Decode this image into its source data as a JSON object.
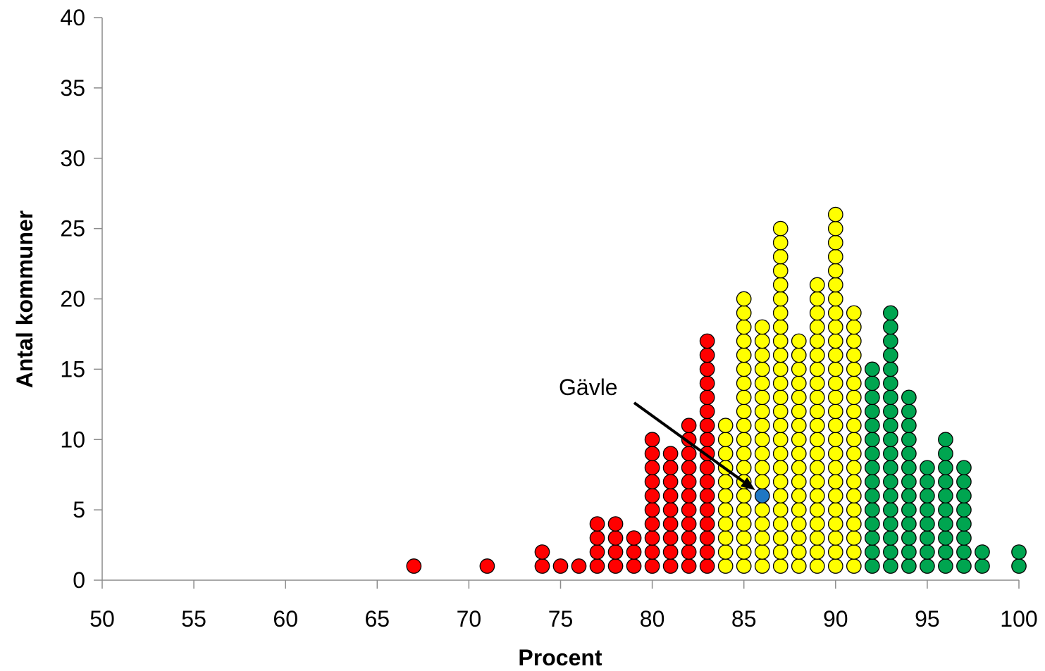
{
  "chart_data": {
    "type": "scatter",
    "subtype": "dot-histogram",
    "xlabel": "Procent",
    "ylabel": "Antal kommuner",
    "xlim": [
      50,
      100
    ],
    "ylim": [
      0,
      40
    ],
    "xticks": [
      "50",
      "55",
      "60",
      "65",
      "70",
      "75",
      "80",
      "85",
      "90",
      "95",
      "100"
    ],
    "yticks": [
      "0",
      "5",
      "10",
      "15",
      "20",
      "25",
      "30",
      "35",
      "40"
    ],
    "grid": false,
    "legend": "none",
    "colors": {
      "red": "#ff0000",
      "yellow": "#ffff00",
      "green": "#00a550",
      "highlight": "#1f77c4"
    },
    "columns": [
      {
        "x": 67,
        "count": 1,
        "color": "red"
      },
      {
        "x": 71,
        "count": 1,
        "color": "red"
      },
      {
        "x": 74,
        "count": 2,
        "color": "red"
      },
      {
        "x": 75,
        "count": 1,
        "color": "red"
      },
      {
        "x": 76,
        "count": 1,
        "color": "red"
      },
      {
        "x": 77,
        "count": 4,
        "color": "red"
      },
      {
        "x": 78,
        "count": 4,
        "color": "red"
      },
      {
        "x": 79,
        "count": 3,
        "color": "red"
      },
      {
        "x": 80,
        "count": 10,
        "color": "red"
      },
      {
        "x": 81,
        "count": 9,
        "color": "red"
      },
      {
        "x": 82,
        "count": 11,
        "color": "red"
      },
      {
        "x": 83,
        "count": 17,
        "color": "red"
      },
      {
        "x": 84,
        "count": 11,
        "color": "yellow"
      },
      {
        "x": 85,
        "count": 20,
        "color": "yellow"
      },
      {
        "x": 86,
        "count": 18,
        "color": "yellow"
      },
      {
        "x": 87,
        "count": 25,
        "color": "yellow"
      },
      {
        "x": 88,
        "count": 17,
        "color": "yellow"
      },
      {
        "x": 89,
        "count": 21,
        "color": "yellow"
      },
      {
        "x": 90,
        "count": 26,
        "color": "yellow"
      },
      {
        "x": 91,
        "count": 19,
        "color": "yellow"
      },
      {
        "x": 92,
        "count": 15,
        "color": "green"
      },
      {
        "x": 93,
        "count": 19,
        "color": "green"
      },
      {
        "x": 94,
        "count": 13,
        "color": "green"
      },
      {
        "x": 95,
        "count": 8,
        "color": "green"
      },
      {
        "x": 96,
        "count": 10,
        "color": "green"
      },
      {
        "x": 97,
        "count": 8,
        "color": "green"
      },
      {
        "x": 98,
        "count": 2,
        "color": "green"
      },
      {
        "x": 100,
        "count": 2,
        "color": "green"
      }
    ],
    "highlight": {
      "label": "Gävle",
      "x": 86,
      "y": 6,
      "color": "highlight"
    },
    "annotations": [
      {
        "text": "Gävle",
        "points_to": {
          "x": 86,
          "y": 6
        }
      }
    ]
  }
}
